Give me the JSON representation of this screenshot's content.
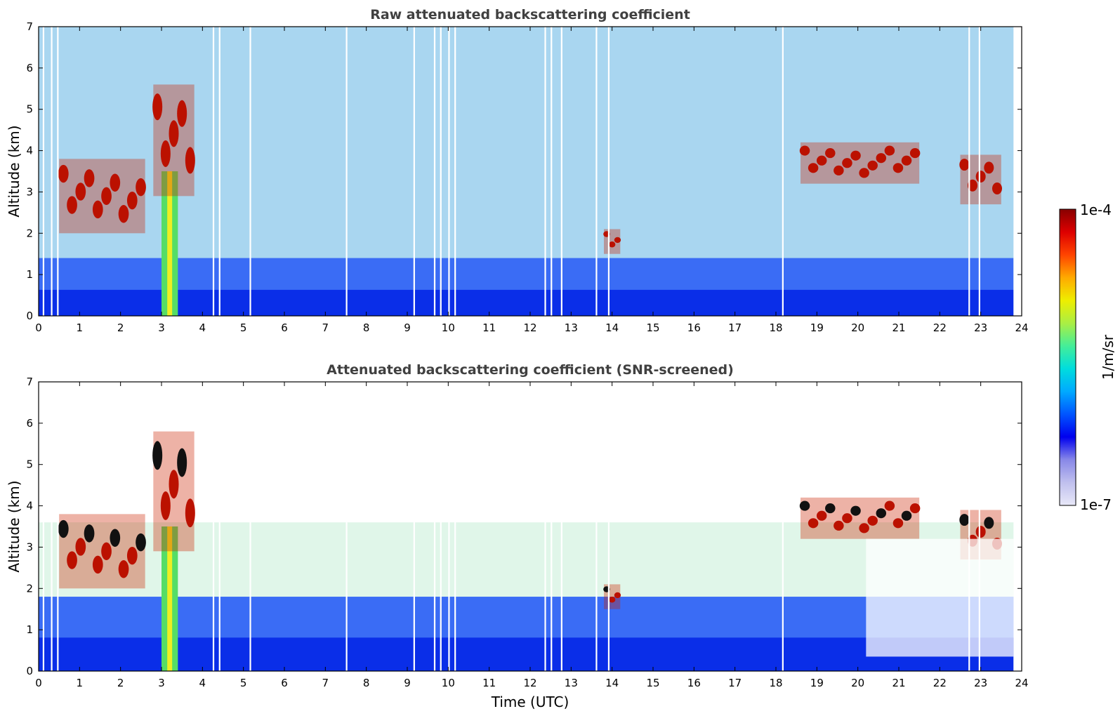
{
  "chart_data": [
    {
      "type": "heatmap",
      "title": "Raw attenuated backscattering coefficient",
      "xlabel": "",
      "ylabel": "Altitude (km)",
      "xlim": [
        0,
        24
      ],
      "ylim": [
        0,
        7
      ],
      "xticks": [
        "0",
        "1",
        "2",
        "3",
        "4",
        "5",
        "6",
        "7",
        "8",
        "9",
        "10",
        "11",
        "12",
        "13",
        "14",
        "15",
        "16",
        "17",
        "18",
        "19",
        "20",
        "21",
        "22",
        "23",
        "24"
      ],
      "yticks": [
        "0",
        "1",
        "2",
        "3",
        "4",
        "5",
        "6",
        "7"
      ],
      "features": [
        {
          "kind": "aerosol-layer",
          "x_range": [
            0,
            23.8
          ],
          "y_range": [
            0,
            1.4
          ],
          "level": "low-mid"
        },
        {
          "kind": "cloud",
          "x_range": [
            0.5,
            2.6
          ],
          "y_range": [
            2.0,
            3.8
          ],
          "level": "high"
        },
        {
          "kind": "virga-column",
          "x_range": [
            3.0,
            3.4
          ],
          "y_range": [
            0,
            3.5
          ],
          "level": "mid"
        },
        {
          "kind": "cloud",
          "x_range": [
            2.8,
            3.8
          ],
          "y_range": [
            2.9,
            5.6
          ],
          "level": "high"
        },
        {
          "kind": "cloud",
          "x_range": [
            13.8,
            14.2
          ],
          "y_range": [
            1.5,
            2.1
          ],
          "level": "high"
        },
        {
          "kind": "cloud",
          "x_range": [
            18.6,
            21.5
          ],
          "y_range": [
            3.2,
            4.2
          ],
          "level": "high"
        },
        {
          "kind": "cloud",
          "x_range": [
            22.5,
            23.5
          ],
          "y_range": [
            2.7,
            3.9
          ],
          "level": "high"
        }
      ],
      "data_gaps_x": [
        0.1,
        0.3,
        0.45,
        4.25,
        4.4,
        5.15,
        7.5,
        9.15,
        9.65,
        9.8,
        10.0,
        10.15,
        12.35,
        12.5,
        12.75,
        13.6,
        13.9,
        18.15,
        22.7,
        22.95
      ]
    },
    {
      "type": "heatmap",
      "title": "Attenuated backscattering coefficient (SNR-screened)",
      "xlabel": "Time (UTC)",
      "ylabel": "Altitude (km)",
      "xlim": [
        0,
        24
      ],
      "ylim": [
        0,
        7
      ],
      "xticks": [
        "0",
        "1",
        "2",
        "3",
        "4",
        "5",
        "6",
        "7",
        "8",
        "9",
        "10",
        "11",
        "12",
        "13",
        "14",
        "15",
        "16",
        "17",
        "18",
        "19",
        "20",
        "21",
        "22",
        "23",
        "24"
      ],
      "yticks": [
        "0",
        "1",
        "2",
        "3",
        "4",
        "5",
        "6",
        "7"
      ],
      "features": [
        {
          "kind": "aerosol-layer",
          "x_range": [
            0,
            23.8
          ],
          "y_range": [
            0,
            1.8
          ],
          "level": "low-mid"
        },
        {
          "kind": "cloud",
          "x_range": [
            0.5,
            2.6
          ],
          "y_range": [
            2.0,
            3.8
          ],
          "level": "high"
        },
        {
          "kind": "virga-column",
          "x_range": [
            3.0,
            3.4
          ],
          "y_range": [
            0,
            3.5
          ],
          "level": "mid"
        },
        {
          "kind": "cloud",
          "x_range": [
            2.8,
            3.8
          ],
          "y_range": [
            2.9,
            5.8
          ],
          "level": "high"
        },
        {
          "kind": "cloud",
          "x_range": [
            13.8,
            14.2
          ],
          "y_range": [
            1.5,
            2.1
          ],
          "level": "high"
        },
        {
          "kind": "cloud",
          "x_range": [
            18.6,
            21.5
          ],
          "y_range": [
            3.2,
            4.2
          ],
          "level": "high"
        },
        {
          "kind": "cloud",
          "x_range": [
            22.5,
            23.5
          ],
          "y_range": [
            2.7,
            3.9
          ],
          "level": "high"
        }
      ],
      "data_gaps_x": [
        0.1,
        0.3,
        0.45,
        4.25,
        4.4,
        5.15,
        7.5,
        9.15,
        9.65,
        9.8,
        10.0,
        10.15,
        12.35,
        12.5,
        12.75,
        13.6,
        13.9,
        18.15,
        22.7,
        22.95
      ],
      "screened_region": {
        "x_range": [
          20.2,
          23.8
        ],
        "y_range": [
          0.35,
          3.2
        ]
      }
    }
  ],
  "colorbar": {
    "label": "1/m/sr",
    "min_label": "1e-7",
    "max_label": "1e-4",
    "colors": [
      "#e8e8f8",
      "#c0c0ee",
      "#8888e8",
      "#0000ee",
      "#0055ff",
      "#00aaff",
      "#00dddd",
      "#44ee99",
      "#aaee44",
      "#eeee00",
      "#ffaa00",
      "#ff4400",
      "#dd0000",
      "#880000"
    ]
  }
}
